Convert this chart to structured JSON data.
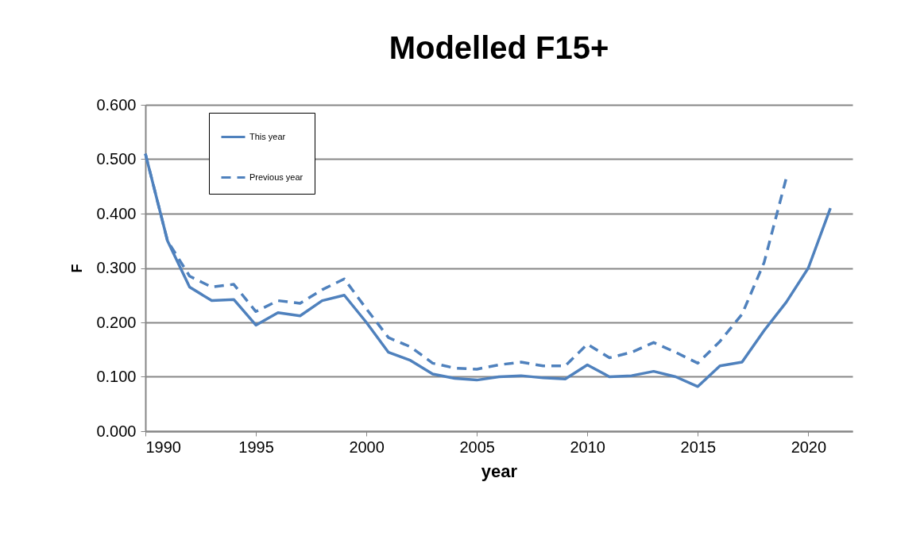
{
  "chart_data": {
    "type": "line",
    "title": "Modelled F15+",
    "xlabel": "year",
    "ylabel": "F",
    "x": [
      1990,
      1991,
      1992,
      1993,
      1994,
      1995,
      1996,
      1997,
      1998,
      1999,
      2000,
      2001,
      2002,
      2003,
      2004,
      2005,
      2006,
      2007,
      2008,
      2009,
      2010,
      2011,
      2012,
      2013,
      2014,
      2015,
      2016,
      2017,
      2018,
      2019,
      2020,
      2021
    ],
    "series": [
      {
        "name": "This year",
        "color": "#4f81bd",
        "line_style": "solid",
        "values": [
          0.51,
          0.35,
          0.265,
          0.24,
          0.242,
          0.195,
          0.218,
          0.212,
          0.24,
          0.25,
          0.2,
          0.145,
          0.13,
          0.105,
          0.097,
          0.094,
          0.1,
          0.102,
          0.098,
          0.096,
          0.122,
          0.1,
          0.102,
          0.11,
          0.1,
          0.082,
          0.12,
          0.127,
          0.185,
          0.237,
          0.3,
          0.41
        ]
      },
      {
        "name": "Previous year",
        "color": "#4f81bd",
        "line_style": "dashed",
        "values": [
          0.51,
          0.35,
          0.285,
          0.265,
          0.27,
          0.22,
          0.24,
          0.235,
          0.26,
          0.28,
          0.225,
          0.172,
          0.155,
          0.125,
          0.116,
          0.114,
          0.122,
          0.127,
          0.12,
          0.12,
          0.16,
          0.135,
          0.145,
          0.163,
          0.145,
          0.125,
          0.165,
          0.215,
          0.31,
          0.465,
          null,
          null
        ]
      }
    ],
    "xlim": [
      1990,
      2022
    ],
    "xticks": [
      1990,
      1995,
      2000,
      2005,
      2010,
      2015,
      2020
    ],
    "ylim": [
      0,
      0.6
    ],
    "yticks": [
      {
        "value": 0,
        "label": "0.000"
      },
      {
        "value": 0.1,
        "label": "0.100"
      },
      {
        "value": 0.2,
        "label": "0.200"
      },
      {
        "value": 0.3,
        "label": "0.300"
      },
      {
        "value": 0.4,
        "label": "0.400"
      },
      {
        "value": 0.5,
        "label": "0.500"
      },
      {
        "value": 0.6,
        "label": "0.600"
      }
    ],
    "grid": "y",
    "legend": "top left"
  }
}
